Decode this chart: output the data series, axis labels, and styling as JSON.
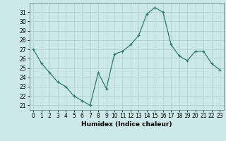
{
  "x": [
    0,
    1,
    2,
    3,
    4,
    5,
    6,
    7,
    8,
    9,
    10,
    11,
    12,
    13,
    14,
    15,
    16,
    17,
    18,
    19,
    20,
    21,
    22,
    23
  ],
  "y": [
    27,
    25.5,
    24.5,
    23.5,
    23,
    22,
    21.5,
    21,
    24.5,
    22.8,
    26.5,
    26.8,
    27.5,
    28.5,
    30.8,
    31.5,
    31,
    27.5,
    26.3,
    25.8,
    26.8,
    26.8,
    25.5,
    24.8
  ],
  "line_color": "#2e7d6e",
  "marker": "+",
  "background_color": "#cce8e8",
  "grid_color": "#b0cccc",
  "xlabel": "Humidex (Indice chaleur)",
  "ylim": [
    20.5,
    32
  ],
  "xlim": [
    -0.5,
    23.5
  ],
  "yticks": [
    21,
    22,
    23,
    24,
    25,
    26,
    27,
    28,
    29,
    30,
    31
  ],
  "xticks": [
    0,
    1,
    2,
    3,
    4,
    5,
    6,
    7,
    8,
    9,
    10,
    11,
    12,
    13,
    14,
    15,
    16,
    17,
    18,
    19,
    20,
    21,
    22,
    23
  ],
  "tick_fontsize": 5.5,
  "xlabel_fontsize": 6.5,
  "line_width": 0.9,
  "marker_size": 3.5
}
